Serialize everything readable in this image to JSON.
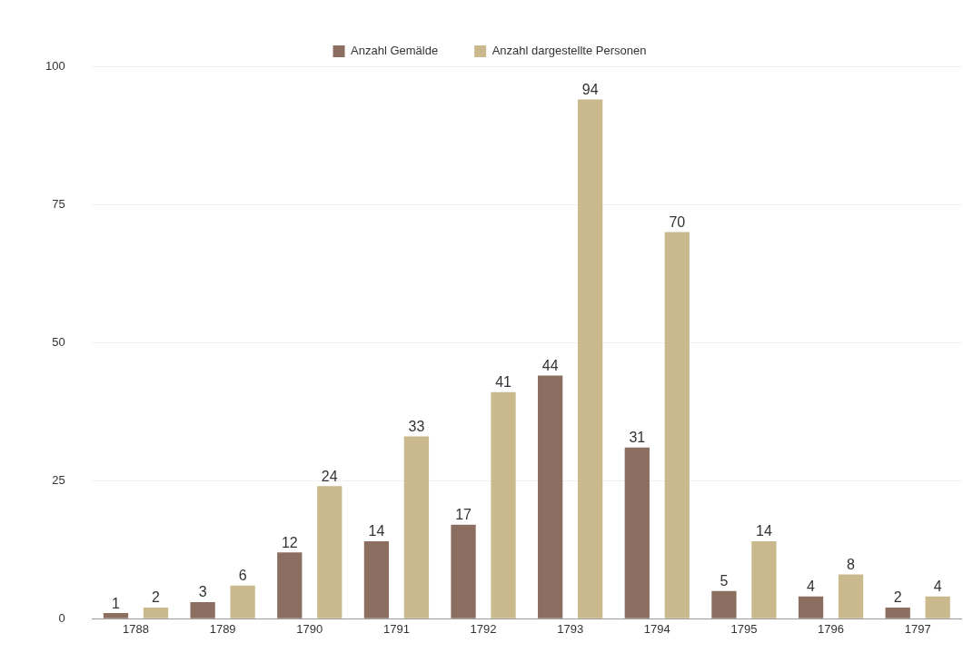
{
  "chart_data": {
    "type": "bar",
    "categories": [
      "1788",
      "1789",
      "1790",
      "1791",
      "1792",
      "1793",
      "1794",
      "1795",
      "1796",
      "1797"
    ],
    "series": [
      {
        "name": "Anzahl Gemälde",
        "color": "#8c6e60",
        "values": [
          1,
          3,
          12,
          14,
          17,
          44,
          31,
          5,
          4,
          2
        ]
      },
      {
        "name": "Anzahl dargestellte Personen",
        "color": "#c9b98c",
        "values": [
          2,
          6,
          24,
          33,
          41,
          94,
          70,
          14,
          8,
          4
        ]
      }
    ],
    "ylim": [
      0,
      100
    ],
    "yticks": [
      0,
      25,
      50,
      75,
      100
    ],
    "grid": "y",
    "legend": "top",
    "data_labels": true
  }
}
